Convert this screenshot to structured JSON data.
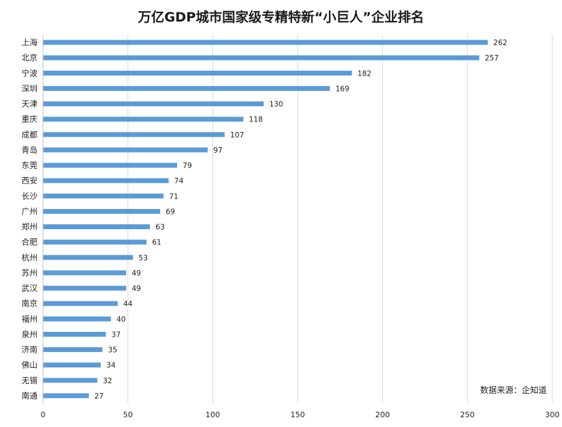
{
  "chart_data": {
    "type": "bar",
    "orientation": "horizontal",
    "title": "万亿GDP城市国家级专精特新“小巨人”企业排名",
    "categories": [
      "上海",
      "北京",
      "宁波",
      "深圳",
      "天津",
      "重庆",
      "成都",
      "青岛",
      "东莞",
      "西安",
      "长沙",
      "广州",
      "郑州",
      "合肥",
      "杭州",
      "苏州",
      "武汉",
      "南京",
      "福州",
      "泉州",
      "济南",
      "佛山",
      "无锡",
      "南通"
    ],
    "values": [
      262,
      257,
      182,
      169,
      130,
      118,
      107,
      97,
      79,
      74,
      71,
      69,
      63,
      61,
      53,
      49,
      49,
      44,
      40,
      37,
      35,
      34,
      32,
      27
    ],
    "xlim": [
      0,
      300
    ],
    "xticks": [
      0,
      50,
      100,
      150,
      200,
      250,
      300
    ],
    "grid": true,
    "bar_color": "#5b9bd5",
    "grid_color": "#d9d9d9",
    "source_note": "数据来源：企知道"
  }
}
